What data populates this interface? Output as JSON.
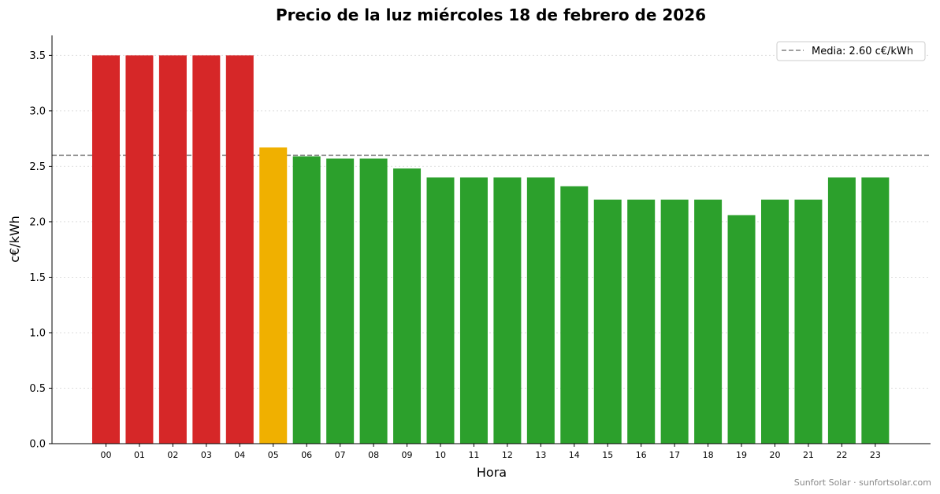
{
  "chart_data": {
    "type": "bar",
    "title": "Precio de la luz miércoles 18 de febrero de 2026",
    "xlabel": "Hora",
    "ylabel": "c€/kWh",
    "ylim": [
      0,
      3.68
    ],
    "yticks": [
      "0.0",
      "0.5",
      "1.0",
      "1.5",
      "2.0",
      "2.5",
      "3.0",
      "3.5"
    ],
    "grid": "horizontal dotted",
    "categories": [
      "00",
      "01",
      "02",
      "03",
      "04",
      "05",
      "06",
      "07",
      "08",
      "09",
      "10",
      "11",
      "12",
      "13",
      "14",
      "15",
      "16",
      "17",
      "18",
      "19",
      "20",
      "21",
      "22",
      "23"
    ],
    "values": [
      3.5,
      3.5,
      3.5,
      3.5,
      3.5,
      2.67,
      2.59,
      2.57,
      2.57,
      2.48,
      2.4,
      2.4,
      2.4,
      2.4,
      2.32,
      2.2,
      2.2,
      2.2,
      2.2,
      2.06,
      2.2,
      2.2,
      2.4,
      2.4
    ],
    "bar_levels": [
      "high",
      "high",
      "high",
      "high",
      "high",
      "mid",
      "low",
      "low",
      "low",
      "low",
      "low",
      "low",
      "low",
      "low",
      "low",
      "low",
      "low",
      "low",
      "low",
      "low",
      "low",
      "low",
      "low",
      "low"
    ],
    "colors": {
      "high": "#d62728",
      "mid": "#f0b000",
      "low": "#2ca02c",
      "mean_line": "#808080"
    },
    "mean": 2.6,
    "legend": {
      "label": "Media: 2.60 c€/kWh",
      "placement": "top-right"
    }
  },
  "footer": {
    "credit": "Sunfort Solar · sunfortsolar.com"
  }
}
